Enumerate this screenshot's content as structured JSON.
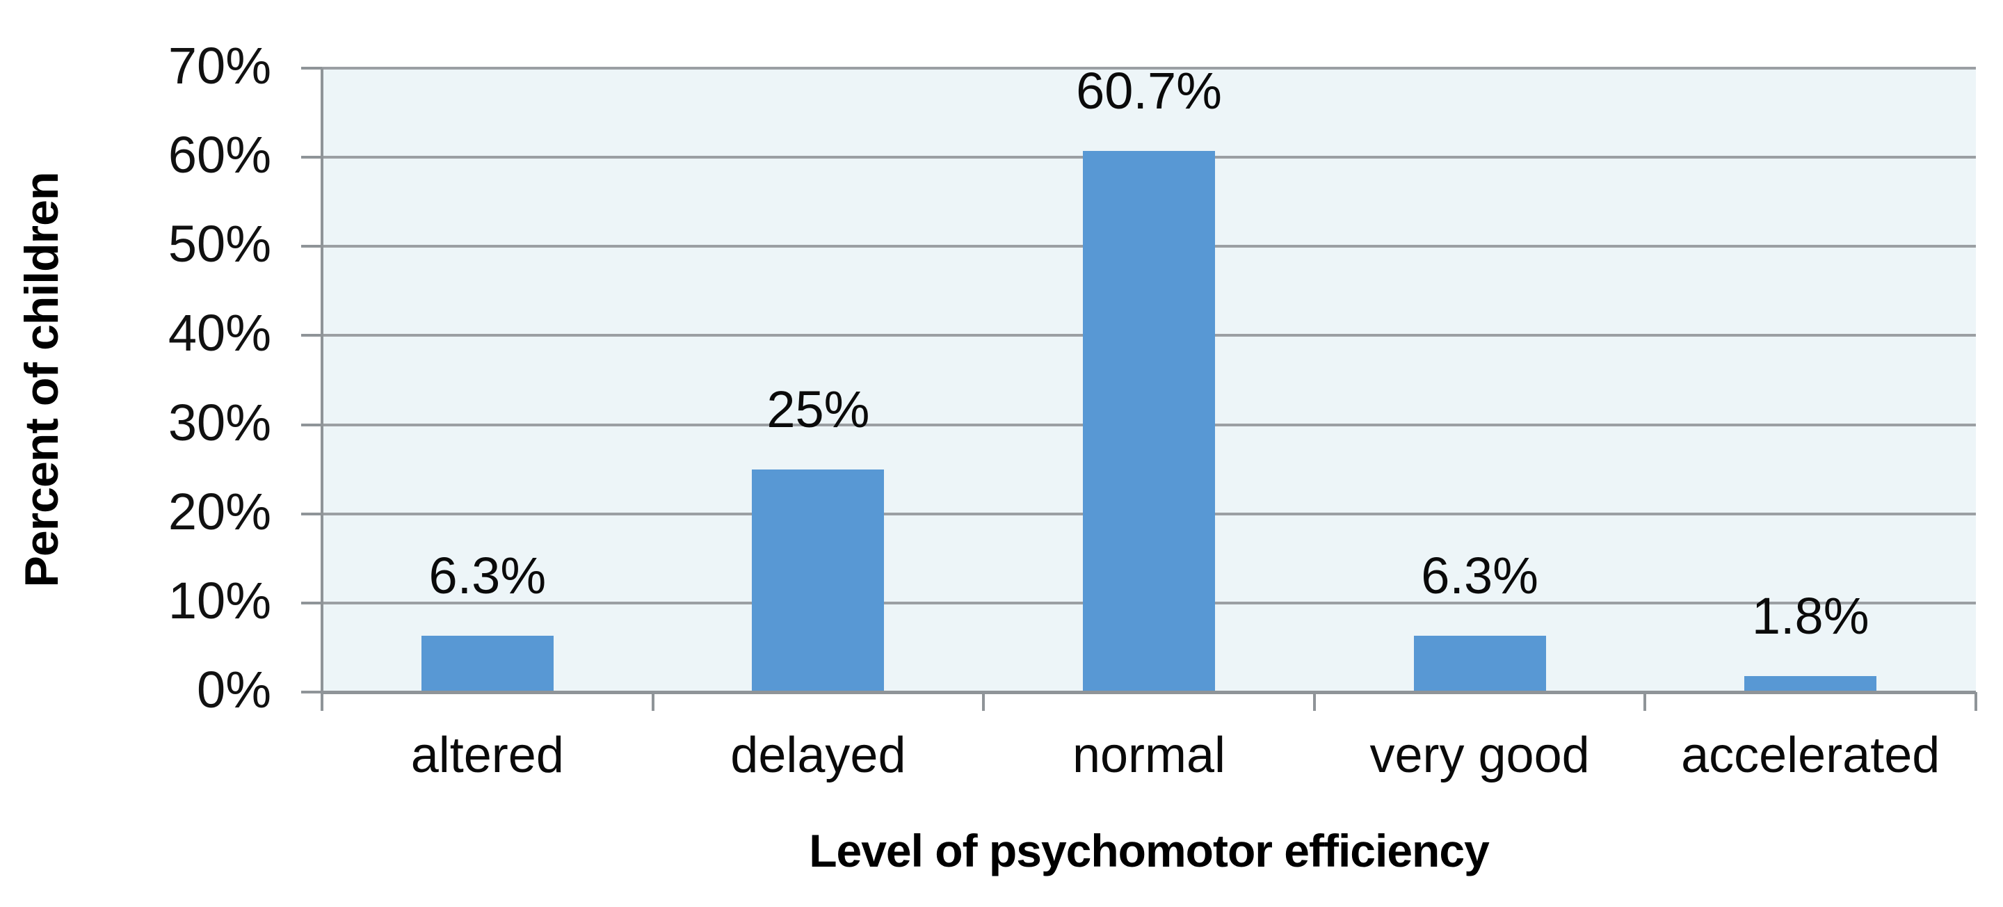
{
  "chart_data": {
    "type": "bar",
    "title": "",
    "categories": [
      "altered",
      "delayed",
      "normal",
      "very good",
      "accelerated"
    ],
    "values": [
      6.3,
      25,
      60.7,
      6.3,
      1.8
    ],
    "data_labels": [
      "6.3%",
      "25%",
      "60.7%",
      "6.3%",
      "1.8%"
    ],
    "xlabel": "Level of psychomotor efficiency",
    "ylabel": "Percent of children",
    "ylim": [
      0,
      70
    ],
    "ytick_step": 10,
    "ytick_labels": [
      "0%",
      "10%",
      "20%",
      "30%",
      "40%",
      "50%",
      "60%",
      "70%"
    ],
    "grid": "horizontal-only",
    "legend_position": "none",
    "colors": {
      "bar": "#5898d4",
      "plot_background": "#edf5f8",
      "gridline": "#9b9fa3",
      "axis_line": "#8f9498",
      "text": "#111111"
    }
  }
}
